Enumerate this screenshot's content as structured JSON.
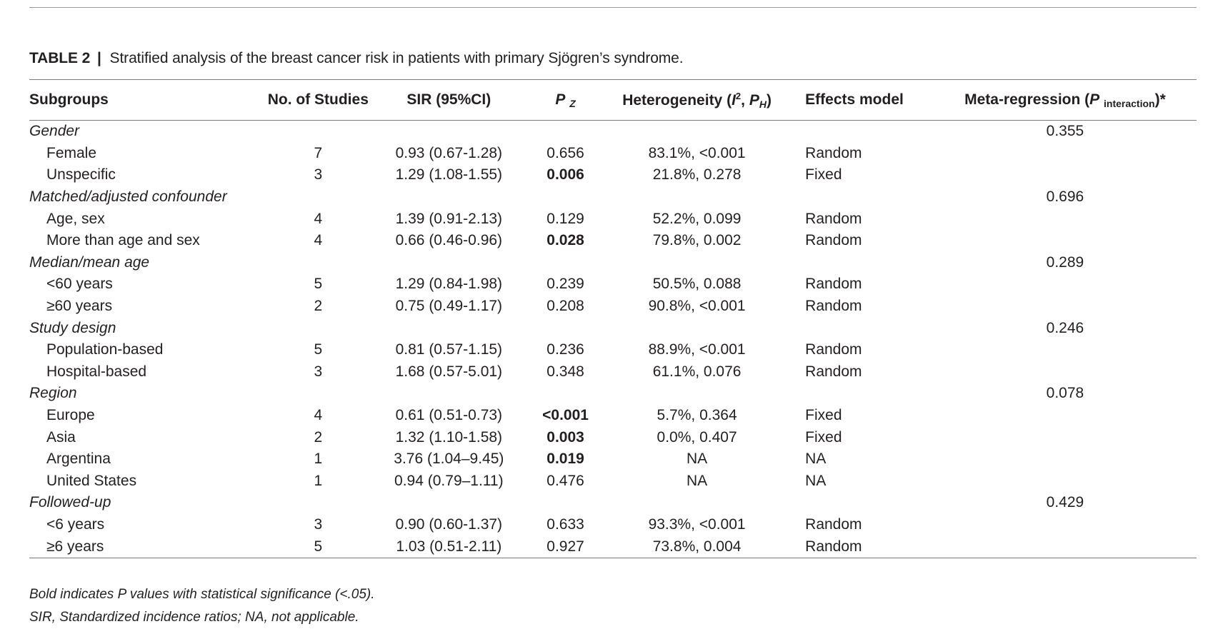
{
  "caption": {
    "label": "TABLE 2",
    "separator": "|",
    "text": "Stratified analysis of the breast cancer risk in patients with primary Sjögren’s syndrome."
  },
  "headers": {
    "subgroups": "Subgroups",
    "studies": "No. of Studies",
    "sir": "SIR (95%CI)",
    "pz_main": "P",
    "pz_sub": "Z",
    "het_prefix": "Heterogeneity (",
    "het_i": "I",
    "het_i_sup": "2",
    "het_sep": ", ",
    "het_p": "P",
    "het_p_sub": "H",
    "het_suffix": ")",
    "effects": "Effects model",
    "meta_prefix": "Meta-regression (",
    "meta_p": "P",
    "meta_sub": "interaction",
    "meta_suffix": ")*"
  },
  "groups": [
    {
      "name": "Gender",
      "meta": "0.355",
      "rows": [
        {
          "label": "Female",
          "studies": "7",
          "sir": "0.93 (0.67-1.28)",
          "pz": "0.656",
          "pz_bold": false,
          "het": "83.1%, <0.001",
          "model": "Random"
        },
        {
          "label": "Unspecific",
          "studies": "3",
          "sir": "1.29 (1.08-1.55)",
          "pz": "0.006",
          "pz_bold": true,
          "het": "21.8%, 0.278",
          "model": "Fixed"
        }
      ]
    },
    {
      "name": "Matched/adjusted confounder",
      "meta": "0.696",
      "rows": [
        {
          "label": "Age, sex",
          "studies": "4",
          "sir": "1.39 (0.91-2.13)",
          "pz": "0.129",
          "pz_bold": false,
          "het": "52.2%, 0.099",
          "model": "Random"
        },
        {
          "label": "More than age and sex",
          "studies": "4",
          "sir": "0.66 (0.46-0.96)",
          "pz": "0.028",
          "pz_bold": true,
          "het": "79.8%, 0.002",
          "model": "Random"
        }
      ]
    },
    {
      "name": "Median/mean age",
      "meta": "0.289",
      "rows": [
        {
          "label": "<60 years",
          "studies": "5",
          "sir": "1.29 (0.84-1.98)",
          "pz": "0.239",
          "pz_bold": false,
          "het": "50.5%, 0.088",
          "model": "Random"
        },
        {
          "label": "≥60 years",
          "studies": "2",
          "sir": "0.75 (0.49-1.17)",
          "pz": "0.208",
          "pz_bold": false,
          "het": "90.8%, <0.001",
          "model": "Random"
        }
      ]
    },
    {
      "name": "Study design",
      "meta": "0.246",
      "rows": [
        {
          "label": "Population-based",
          "studies": "5",
          "sir": "0.81 (0.57-1.15)",
          "pz": "0.236",
          "pz_bold": false,
          "het": "88.9%, <0.001",
          "model": "Random"
        },
        {
          "label": "Hospital-based",
          "studies": "3",
          "sir": "1.68 (0.57-5.01)",
          "pz": "0.348",
          "pz_bold": false,
          "het": "61.1%, 0.076",
          "model": "Random"
        }
      ]
    },
    {
      "name": "Region",
      "meta": "0.078",
      "rows": [
        {
          "label": "Europe",
          "studies": "4",
          "sir": "0.61 (0.51-0.73)",
          "pz": "<0.001",
          "pz_bold": true,
          "het": "5.7%, 0.364",
          "model": "Fixed"
        },
        {
          "label": "Asia",
          "studies": "2",
          "sir": "1.32 (1.10-1.58)",
          "pz": "0.003",
          "pz_bold": true,
          "het": "0.0%, 0.407",
          "model": "Fixed"
        },
        {
          "label": "Argentina",
          "studies": "1",
          "sir": "3.76 (1.04–9.45)",
          "pz": "0.019",
          "pz_bold": true,
          "het": "NA",
          "model": "NA"
        },
        {
          "label": "United States",
          "studies": "1",
          "sir": "0.94 (0.79–1.11)",
          "pz": "0.476",
          "pz_bold": false,
          "het": "NA",
          "model": "NA"
        }
      ]
    },
    {
      "name": "Followed-up",
      "meta": "0.429",
      "rows": [
        {
          "label": "<6 years",
          "studies": "3",
          "sir": "0.90 (0.60-1.37)",
          "pz": "0.633",
          "pz_bold": false,
          "het": "93.3%, <0.001",
          "model": "Random"
        },
        {
          "label": "≥6 years",
          "studies": "5",
          "sir": "1.03 (0.51-2.11)",
          "pz": "0.927",
          "pz_bold": false,
          "het": "73.8%, 0.004",
          "model": "Random"
        }
      ]
    }
  ],
  "footnotes": [
    "Bold indicates P values with statistical significance (<.05).",
    "SIR, Standardized incidence ratios; NA, not applicable."
  ]
}
